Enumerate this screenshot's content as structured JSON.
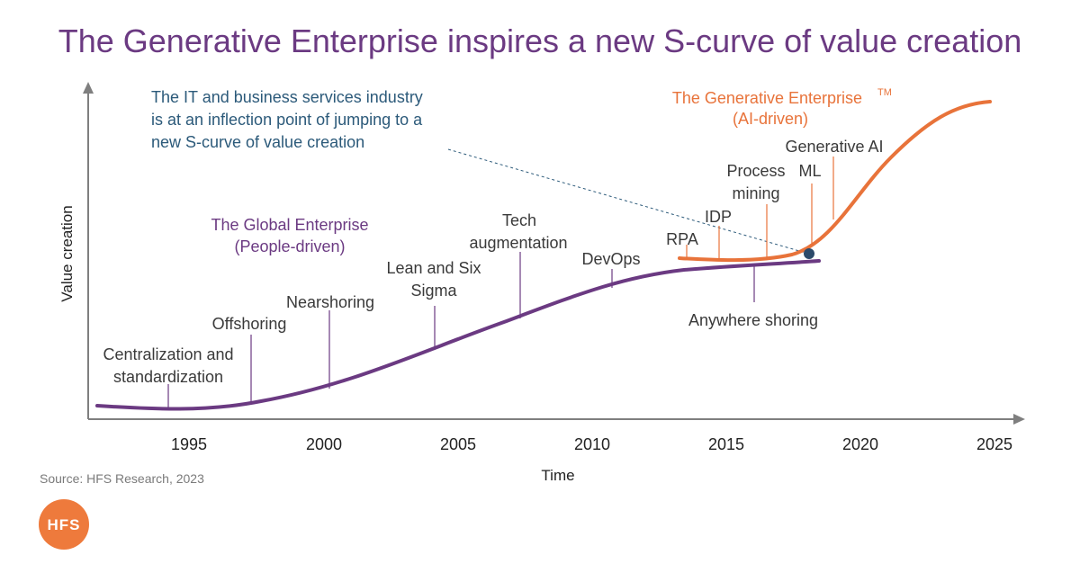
{
  "title": "The Generative Enterprise inspires a new S-curve of value creation",
  "axes": {
    "x_title": "Time",
    "y_title": "Value creation",
    "x_ticks": [
      "1995",
      "2000",
      "2005",
      "2010",
      "2015",
      "2020",
      "2025"
    ]
  },
  "global_enterprise": {
    "title_line1": "The Global Enterprise",
    "title_line2": "(People-driven)",
    "milestones": [
      {
        "id": "centralization",
        "line1": "Centralization and",
        "line2": "standardization"
      },
      {
        "id": "offshoring",
        "line1": "Offshoring",
        "line2": ""
      },
      {
        "id": "nearshoring",
        "line1": "Nearshoring",
        "line2": ""
      },
      {
        "id": "lean-six-sigma",
        "line1": "Lean and Six",
        "line2": "Sigma"
      },
      {
        "id": "tech-augmentation",
        "line1": "Tech",
        "line2": "augmentation"
      },
      {
        "id": "devops",
        "line1": "DevOps",
        "line2": ""
      },
      {
        "id": "anywhere-shoring",
        "line1": "Anywhere shoring",
        "line2": ""
      }
    ]
  },
  "generative_enterprise": {
    "title_line1": "The Generative Enterprise",
    "trademark": "TM",
    "title_line2": "(AI-driven)",
    "milestones": [
      {
        "id": "rpa",
        "line1": "RPA",
        "line2": ""
      },
      {
        "id": "idp",
        "line1": "IDP",
        "line2": ""
      },
      {
        "id": "process-mining",
        "line1": "Process",
        "line2": "mining"
      },
      {
        "id": "ml",
        "line1": "ML",
        "line2": ""
      },
      {
        "id": "generative-ai",
        "line1": "Generative AI",
        "line2": ""
      }
    ]
  },
  "annotation": {
    "line1": "The IT and business services industry",
    "line2": "is at an inflection point of jumping  to a",
    "line3": "new S-curve of value creation"
  },
  "source": "Source: HFS Research, 2023",
  "logo": "HFS",
  "colors": {
    "purple": "#6b3a82",
    "orange": "#e8733a",
    "note_blue": "#2c5a7a",
    "axis_gray": "#7f7f7f"
  }
}
